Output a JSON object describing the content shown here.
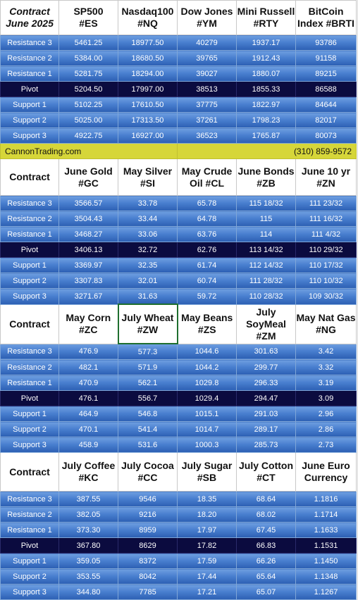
{
  "banner": {
    "site": "CannonTrading.com",
    "phone": "(310) 859-9572"
  },
  "row_labels": [
    "Resistance 3",
    "Resistance 2",
    "Resistance 1",
    "Pivot",
    "Support 1",
    "Support 2",
    "Support 3"
  ],
  "sections": [
    {
      "header": [
        "Contract\nJune 2025",
        "SP500\n#ES",
        "Nasdaq100\n#NQ",
        "Dow Jones\n#YM",
        "Mini Russell\n#RTY",
        "BitCoin\nIndex #BRTI"
      ],
      "rows": [
        [
          "5461.25",
          "18977.50",
          "40279",
          "1937.17",
          "93786"
        ],
        [
          "5384.00",
          "18680.50",
          "39765",
          "1912.43",
          "91158"
        ],
        [
          "5281.75",
          "18294.00",
          "39027",
          "1880.07",
          "89215"
        ],
        [
          "5204.50",
          "17997.00",
          "38513",
          "1855.33",
          "86588"
        ],
        [
          "5102.25",
          "17610.50",
          "37775",
          "1822.97",
          "84644"
        ],
        [
          "5025.00",
          "17313.50",
          "37261",
          "1798.23",
          "82017"
        ],
        [
          "4922.75",
          "16927.00",
          "36523",
          "1765.87",
          "80073"
        ]
      ]
    },
    {
      "header": [
        "Contract",
        "June Gold\n#GC",
        "May Silver\n#SI",
        "May Crude\nOil #CL",
        "June Bonds\n#ZB",
        "June 10 yr\n#ZN"
      ],
      "rows": [
        [
          "3566.57",
          "33.78",
          "65.78",
          "115 18/32",
          "111 23/32"
        ],
        [
          "3504.43",
          "33.44",
          "64.78",
          "115",
          "111 16/32"
        ],
        [
          "3468.27",
          "33.06",
          "63.76",
          "114",
          "111  4/32"
        ],
        [
          "3406.13",
          "32.72",
          "62.76",
          "113 14/32",
          "110 29/32"
        ],
        [
          "3369.97",
          "32.35",
          "61.74",
          "112 14/32",
          "110 17/32"
        ],
        [
          "3307.83",
          "32.01",
          "60.74",
          "111 28/32",
          "110 10/32"
        ],
        [
          "3271.67",
          "31.63",
          "59.72",
          "110 28/32",
          "109 30/32"
        ]
      ]
    },
    {
      "header": [
        "Contract",
        "May Corn\n#ZC",
        "July  Wheat\n#ZW",
        "May Beans\n#ZS",
        "July\nSoyMeal\n#ZM",
        "May Nat Gas\n#NG"
      ],
      "rows": [
        [
          "476.9",
          "577.3",
          "1044.6",
          "301.63",
          "3.42"
        ],
        [
          "482.1",
          "571.9",
          "1044.2",
          "299.77",
          "3.32"
        ],
        [
          "470.9",
          "562.1",
          "1029.8",
          "296.33",
          "3.19"
        ],
        [
          "476.1",
          "556.7",
          "1029.4",
          "294.47",
          "3.09"
        ],
        [
          "464.9",
          "546.8",
          "1015.1",
          "291.03",
          "2.96"
        ],
        [
          "470.1",
          "541.4",
          "1014.7",
          "289.17",
          "2.86"
        ],
        [
          "458.9",
          "531.6",
          "1000.3",
          "285.73",
          "2.73"
        ]
      ]
    },
    {
      "header": [
        "Contract",
        "July Coffee\n#KC",
        "July Cocoa\n#CC",
        "July Sugar\n#SB",
        "July Cotton\n#CT",
        "June Euro\nCurrency"
      ],
      "rows": [
        [
          "387.55",
          "9546",
          "18.35",
          "68.64",
          "1.1816"
        ],
        [
          "382.05",
          "9216",
          "18.20",
          "68.02",
          "1.1714"
        ],
        [
          "373.30",
          "8959",
          "17.97",
          "67.45",
          "1.1633"
        ],
        [
          "367.80",
          "8629",
          "17.82",
          "66.83",
          "1.1531"
        ],
        [
          "359.05",
          "8372",
          "17.59",
          "66.26",
          "1.1450"
        ],
        [
          "353.55",
          "8042",
          "17.44",
          "65.64",
          "1.1348"
        ],
        [
          "344.80",
          "7785",
          "17.21",
          "65.07",
          "1.1267"
        ]
      ]
    }
  ]
}
